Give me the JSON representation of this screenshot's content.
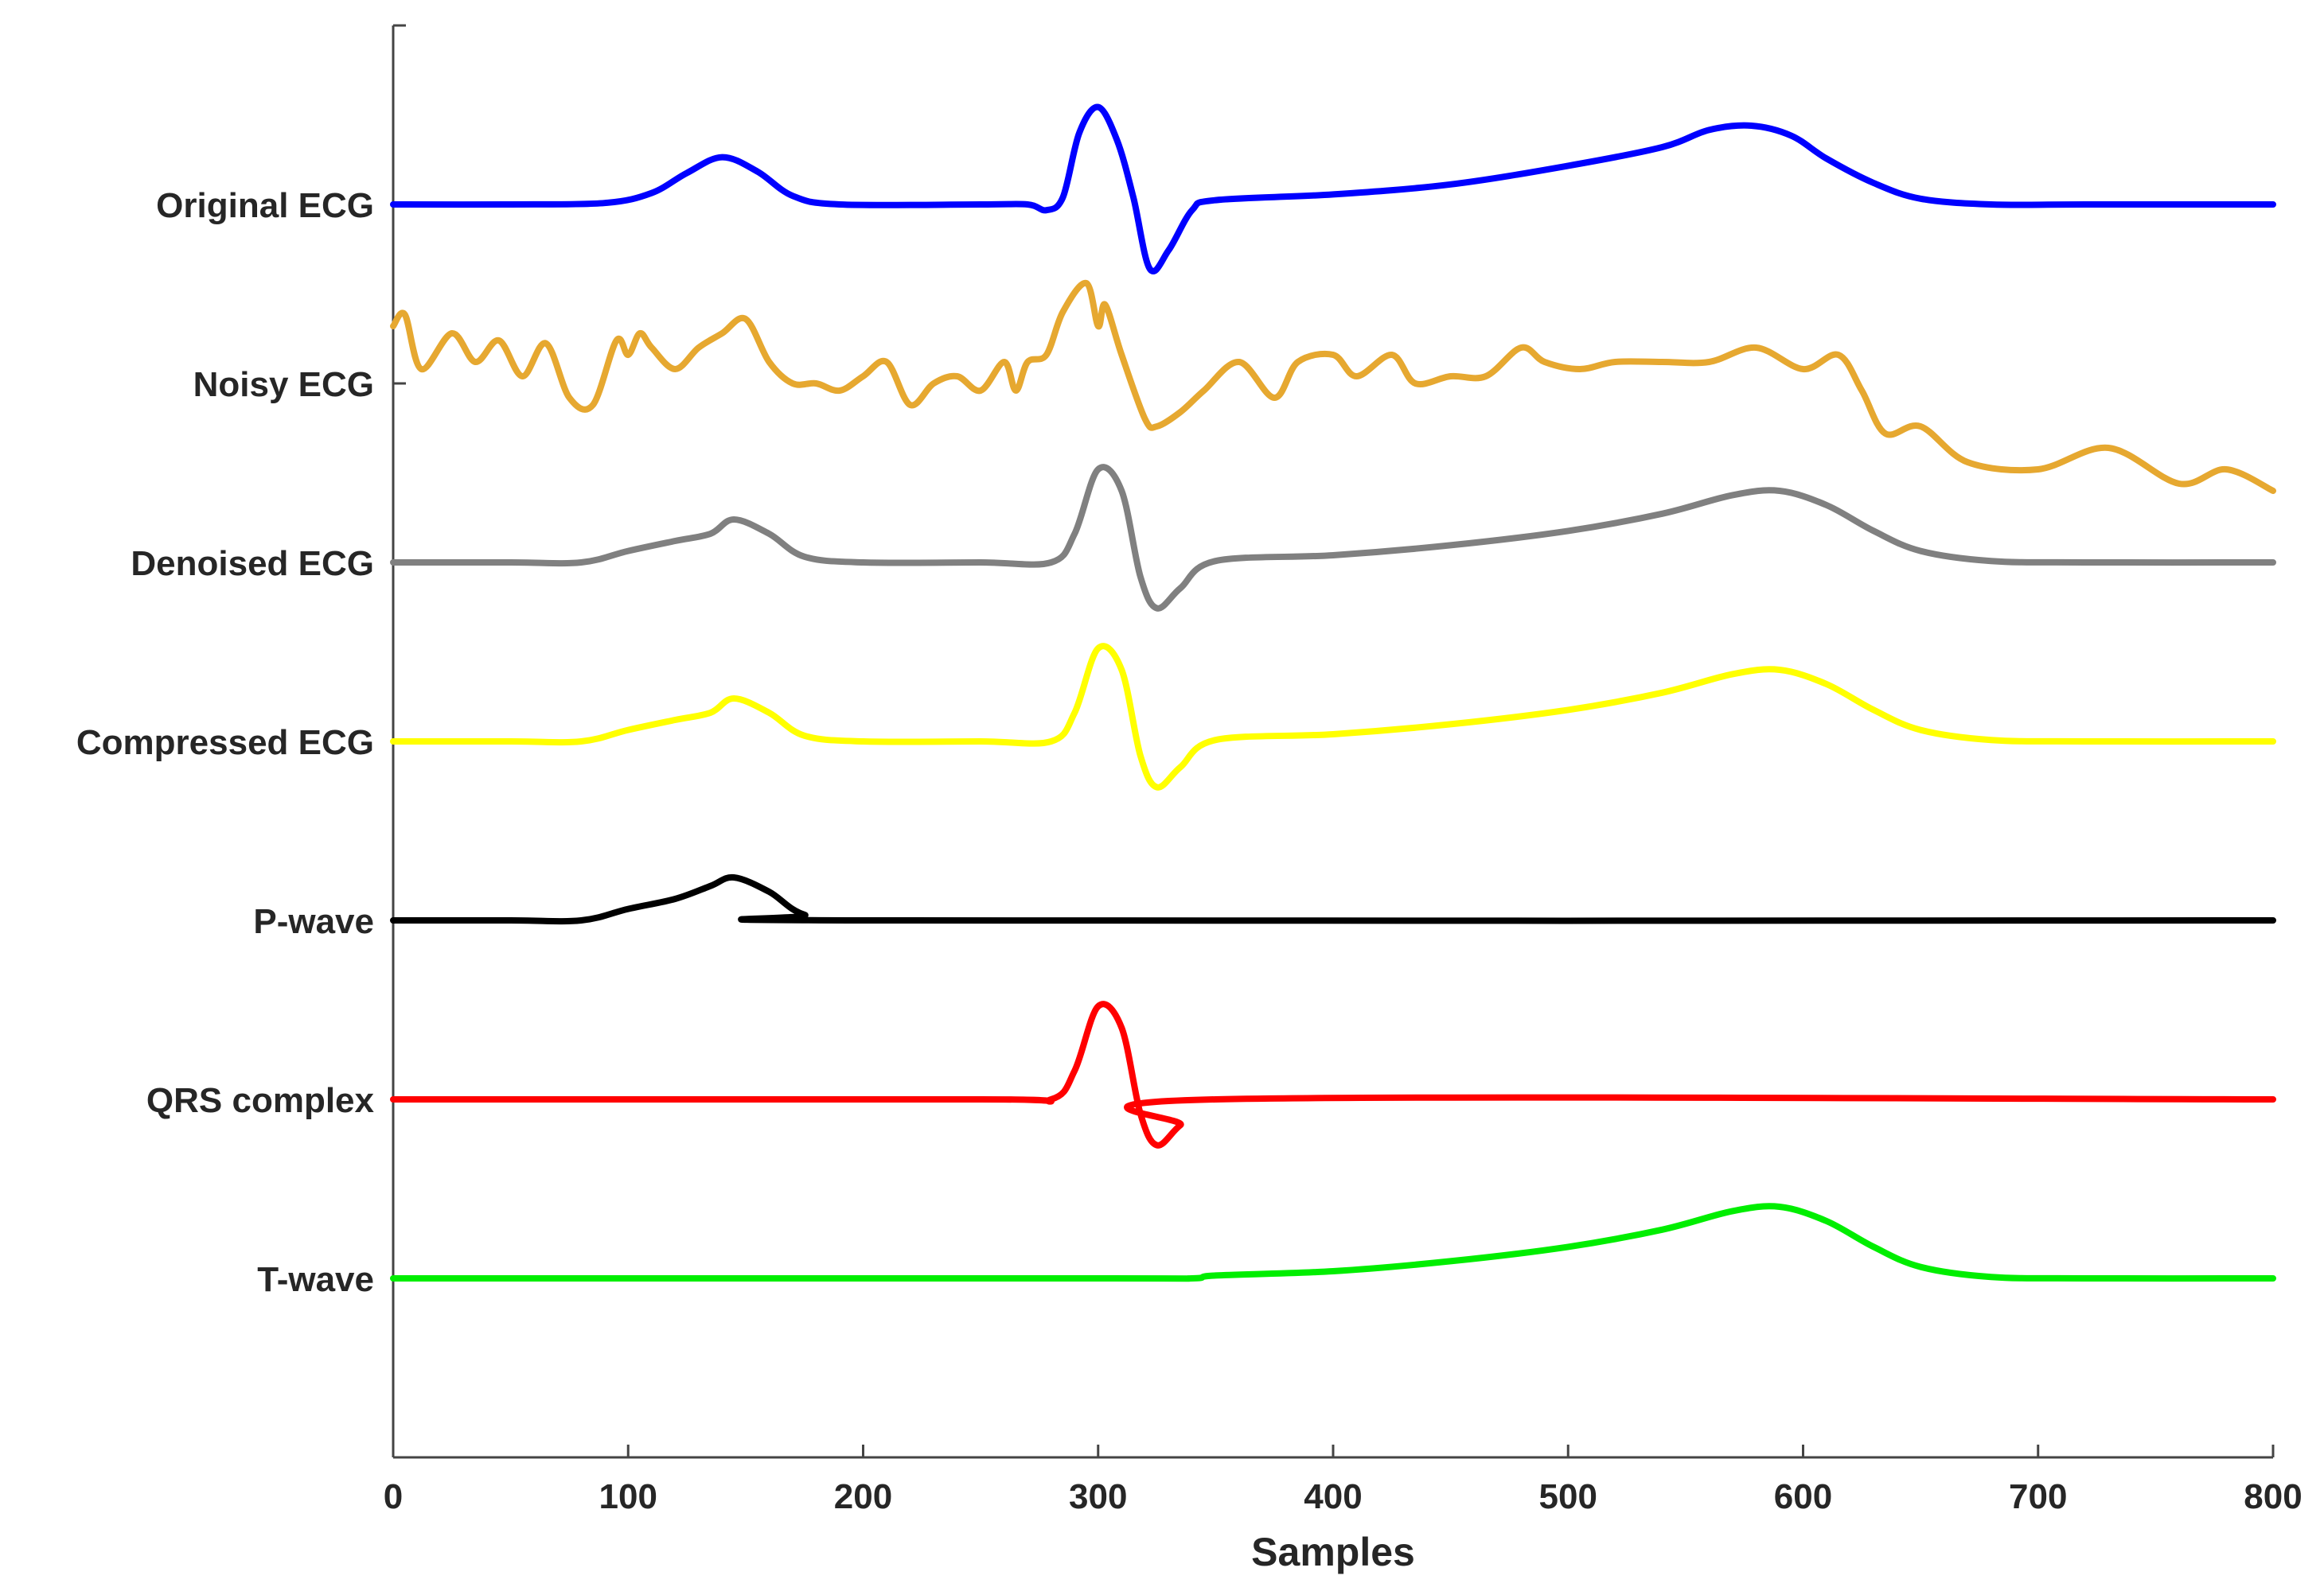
{
  "chart_data": {
    "type": "line",
    "title": "",
    "xlabel": "Samples",
    "ylabel": "",
    "xlim": [
      0,
      800
    ],
    "x_ticks": [
      0,
      100,
      200,
      300,
      400,
      500,
      600,
      700,
      800
    ],
    "grid": false,
    "legend": "none",
    "series": [
      {
        "name": "Original ECG",
        "color": "#0000ff",
        "x": [
          0,
          50,
          90,
          110,
          125,
          140,
          155,
          170,
          190,
          250,
          270,
          278,
          285,
          292,
          300,
          308,
          315,
          322,
          330,
          340,
          350,
          400,
          450,
          500,
          540,
          560,
          578,
          595,
          610,
          630,
          650,
          680,
          720,
          800
        ],
        "values": [
          0,
          0,
          0.01,
          0.08,
          0.22,
          0.33,
          0.23,
          0.06,
          0,
          0,
          0,
          -0.04,
          0.05,
          0.5,
          0.68,
          0.45,
          0.05,
          -0.45,
          -0.32,
          -0.04,
          0.03,
          0.07,
          0.14,
          0.27,
          0.4,
          0.52,
          0.55,
          0.48,
          0.32,
          0.15,
          0.04,
          0,
          0,
          0
        ]
      },
      {
        "name": "Noisy ECG",
        "color": "#e6a830",
        "x": [
          0,
          5,
          12,
          25,
          35,
          45,
          55,
          65,
          75,
          85,
          95,
          100,
          105,
          110,
          120,
          130,
          140,
          150,
          160,
          170,
          180,
          190,
          200,
          210,
          220,
          230,
          240,
          250,
          260,
          265,
          270,
          278,
          285,
          295,
          300,
          303,
          310,
          320,
          325,
          335,
          345,
          360,
          375,
          385,
          400,
          410,
          425,
          435,
          450,
          465,
          480,
          490,
          505,
          520,
          540,
          560,
          580,
          600,
          615,
          625,
          635,
          650,
          670,
          700,
          730,
          760,
          780,
          800
        ],
        "values": [
          0.4,
          0.48,
          0.1,
          0.35,
          0.15,
          0.3,
          0.05,
          0.28,
          -0.1,
          -0.15,
          0.3,
          0.2,
          0.35,
          0.25,
          0.1,
          0.25,
          0.35,
          0.45,
          0.15,
          0,
          0,
          -0.05,
          0.05,
          0.15,
          -0.15,
          0,
          0.05,
          -0.05,
          0.15,
          -0.05,
          0.15,
          0.2,
          0.5,
          0.7,
          0.4,
          0.55,
          0.2,
          -0.25,
          -0.3,
          -0.2,
          -0.05,
          0.15,
          -0.1,
          0.15,
          0.2,
          0.05,
          0.2,
          0.0,
          0.05,
          0.05,
          0.25,
          0.15,
          0.1,
          0.15,
          0.15,
          0.15,
          0.25,
          0.1,
          0.2,
          -0.05,
          -0.35,
          -0.3,
          -0.55,
          -0.6,
          -0.45,
          -0.7,
          -0.6,
          -0.75
        ]
      },
      {
        "name": "Denoised ECG",
        "color": "#808080",
        "x": [
          0,
          50,
          80,
          100,
          120,
          135,
          145,
          160,
          175,
          200,
          250,
          280,
          290,
          300,
          310,
          318,
          325,
          335,
          350,
          400,
          450,
          500,
          540,
          570,
          590,
          610,
          630,
          650,
          680,
          720,
          800
        ],
        "values": [
          0,
          0,
          0,
          0.08,
          0.15,
          0.2,
          0.3,
          0.2,
          0.04,
          0,
          0,
          0,
          0.2,
          0.65,
          0.5,
          -0.1,
          -0.32,
          -0.18,
          0.01,
          0.05,
          0.12,
          0.22,
          0.34,
          0.47,
          0.5,
          0.4,
          0.22,
          0.08,
          0.01,
          0,
          0
        ]
      },
      {
        "name": "Compressed ECG",
        "color": "#ffff00",
        "x": [
          0,
          50,
          80,
          100,
          120,
          135,
          145,
          160,
          175,
          200,
          250,
          280,
          290,
          300,
          310,
          318,
          325,
          335,
          350,
          400,
          450,
          500,
          540,
          570,
          590,
          610,
          630,
          650,
          680,
          720,
          800
        ],
        "values": [
          0,
          0,
          0,
          0.08,
          0.15,
          0.2,
          0.3,
          0.2,
          0.04,
          0,
          0,
          0,
          0.2,
          0.65,
          0.5,
          -0.1,
          -0.32,
          -0.18,
          0.01,
          0.05,
          0.12,
          0.22,
          0.34,
          0.47,
          0.5,
          0.4,
          0.22,
          0.08,
          0.01,
          0,
          0
        ]
      },
      {
        "name": "P-wave",
        "color": "#000000",
        "x": [
          0,
          50,
          80,
          100,
          120,
          135,
          145,
          160,
          175,
          200,
          800
        ],
        "values": [
          0,
          0,
          0,
          0.08,
          0.15,
          0.24,
          0.3,
          0.2,
          0.04,
          0,
          0
        ]
      },
      {
        "name": "QRS complex",
        "color": "#ff0000",
        "x": [
          0,
          250,
          280,
          290,
          300,
          310,
          318,
          325,
          335,
          350,
          800
        ],
        "values": [
          0,
          0,
          0,
          0.2,
          0.65,
          0.5,
          -0.1,
          -0.32,
          -0.18,
          0,
          0
        ]
      },
      {
        "name": "T-wave",
        "color": "#00ee00",
        "x": [
          0,
          300,
          340,
          350,
          400,
          450,
          500,
          540,
          570,
          590,
          610,
          630,
          650,
          680,
          720,
          800
        ],
        "values": [
          0,
          0,
          0,
          0.02,
          0.05,
          0.12,
          0.22,
          0.34,
          0.47,
          0.5,
          0.4,
          0.22,
          0.08,
          0.01,
          0,
          0
        ]
      }
    ]
  }
}
